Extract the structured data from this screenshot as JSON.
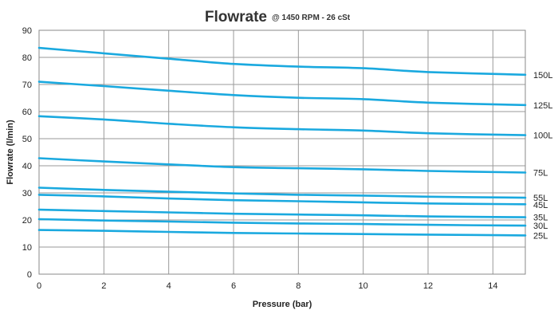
{
  "chart_data": {
    "type": "line",
    "title": "Flowrate",
    "subtitle": "@ 1450 RPM - 26 cSt",
    "xlabel": "Pressure (bar)",
    "ylabel": "Flowrate (l/min)",
    "xlim": [
      0,
      15
    ],
    "ylim": [
      0,
      90
    ],
    "x_ticks": [
      0,
      2,
      4,
      6,
      8,
      10,
      12,
      14
    ],
    "y_ticks": [
      0,
      10,
      20,
      30,
      40,
      50,
      60,
      70,
      80,
      90
    ],
    "grid": true,
    "line_color": "#1aa9df",
    "series": [
      {
        "name": "150L",
        "points": [
          [
            0,
            83.5
          ],
          [
            2,
            81.5
          ],
          [
            4,
            79.5
          ],
          [
            6,
            77.6
          ],
          [
            8,
            76.6
          ],
          [
            10,
            76.0
          ],
          [
            12,
            74.6
          ],
          [
            15,
            73.6
          ]
        ]
      },
      {
        "name": "125L",
        "points": [
          [
            0,
            71.0
          ],
          [
            2,
            69.4
          ],
          [
            4,
            67.7
          ],
          [
            6,
            66.1
          ],
          [
            8,
            65.1
          ],
          [
            10,
            64.6
          ],
          [
            12,
            63.3
          ],
          [
            15,
            62.4
          ]
        ]
      },
      {
        "name": "100L",
        "points": [
          [
            0,
            58.3
          ],
          [
            2,
            57.1
          ],
          [
            4,
            55.5
          ],
          [
            6,
            54.2
          ],
          [
            8,
            53.5
          ],
          [
            10,
            53.0
          ],
          [
            12,
            52.0
          ],
          [
            15,
            51.3
          ]
        ]
      },
      {
        "name": "75L",
        "points": [
          [
            0,
            42.8
          ],
          [
            2,
            41.6
          ],
          [
            4,
            40.5
          ],
          [
            6,
            39.5
          ],
          [
            8,
            39.1
          ],
          [
            10,
            38.7
          ],
          [
            12,
            38.1
          ],
          [
            15,
            37.5
          ]
        ]
      },
      {
        "name": "55L",
        "points": [
          [
            0,
            31.9
          ],
          [
            2,
            31.1
          ],
          [
            4,
            30.4
          ],
          [
            6,
            29.8
          ],
          [
            8,
            29.3
          ],
          [
            10,
            29.0
          ],
          [
            12,
            28.6
          ],
          [
            15,
            28.2
          ]
        ]
      },
      {
        "name": "45L",
        "points": [
          [
            0,
            29.3
          ],
          [
            2,
            28.7
          ],
          [
            4,
            27.9
          ],
          [
            6,
            27.3
          ],
          [
            8,
            26.9
          ],
          [
            10,
            26.5
          ],
          [
            12,
            26.1
          ],
          [
            15,
            25.8
          ]
        ]
      },
      {
        "name": "35L",
        "points": [
          [
            0,
            23.8
          ],
          [
            2,
            23.3
          ],
          [
            4,
            22.8
          ],
          [
            6,
            22.3
          ],
          [
            8,
            22.0
          ],
          [
            10,
            21.7
          ],
          [
            12,
            21.3
          ],
          [
            15,
            21.0
          ]
        ]
      },
      {
        "name": "30L",
        "points": [
          [
            0,
            20.3
          ],
          [
            2,
            19.8
          ],
          [
            4,
            19.4
          ],
          [
            6,
            19.0
          ],
          [
            8,
            18.7
          ],
          [
            10,
            18.5
          ],
          [
            12,
            18.2
          ],
          [
            15,
            17.9
          ]
        ]
      },
      {
        "name": "25L",
        "points": [
          [
            0,
            16.3
          ],
          [
            2,
            16.0
          ],
          [
            4,
            15.6
          ],
          [
            6,
            15.2
          ],
          [
            8,
            15.0
          ],
          [
            10,
            14.8
          ],
          [
            12,
            14.6
          ],
          [
            15,
            14.3
          ]
        ]
      }
    ]
  }
}
